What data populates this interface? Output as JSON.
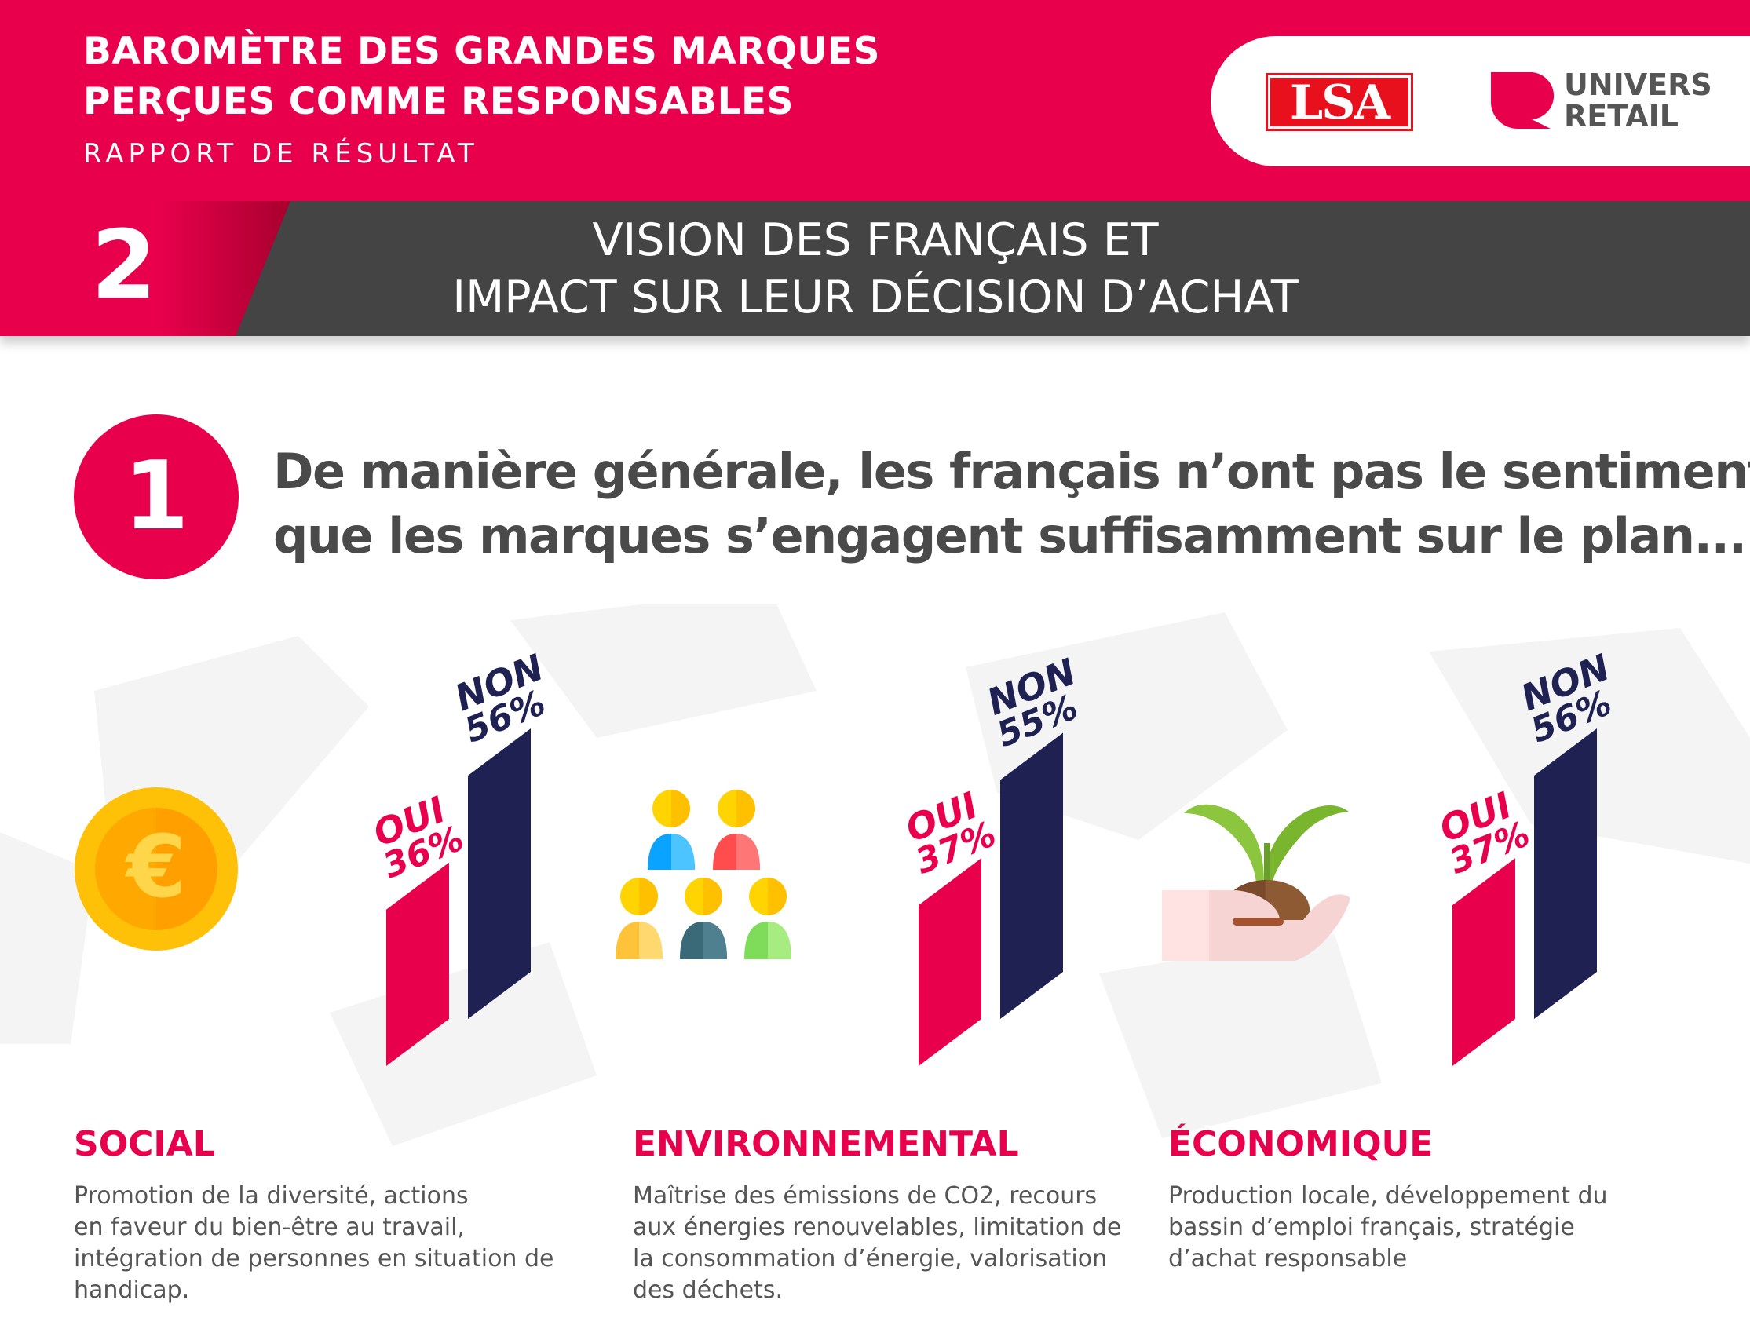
{
  "header": {
    "title_line1": "BAROMÈTRE DES GRANDES MARQUES",
    "title_line2": "PERÇUES COMME RESPONSABLES",
    "subtitle": "RAPPORT DE RÉSULTAT",
    "logo_lsa": "LSA",
    "logo_univers_line1": "UNIVERS",
    "logo_univers_line2": "RETAIL"
  },
  "section": {
    "number": "2",
    "title_line1": "VISION DES FRANÇAIS ET",
    "title_line2": "IMPACT SUR LEUR DÉCISION D’ACHAT"
  },
  "question": {
    "number": "1",
    "line1": "De manière générale, les français n’ont pas le sentiment",
    "line2": "que les marques s’engagent suffisamment sur le plan..."
  },
  "colors": {
    "oui": "#e8004c",
    "non": "#1e2152",
    "accent": "#e8004c"
  },
  "chart_data": {
    "type": "bar",
    "categories": [
      "SOCIAL",
      "ENVIRONNEMENTAL",
      "ÉCONOMIQUE"
    ],
    "series": [
      {
        "name": "OUI",
        "values": [
          36,
          37,
          37
        ],
        "labels": [
          "36%",
          "37%",
          "37%"
        ]
      },
      {
        "name": "NON",
        "values": [
          56,
          55,
          56
        ],
        "labels": [
          "56%",
          "55%",
          "56%"
        ]
      }
    ],
    "descriptions": [
      [
        "Promotion de la diversité, actions",
        "en faveur du bien-être au travail,",
        "intégration de personnes en situation de",
        "handicap."
      ],
      [
        "Maîtrise des émissions de CO2, recours",
        "aux énergies renouvelables, limitation de",
        "la consommation d’énergie, valorisation",
        "des déchets."
      ],
      [
        "Production locale, développement du",
        "bassin d’emploi français, stratégie",
        "d’achat responsable"
      ]
    ],
    "icons": [
      "euro-coin-icon",
      "people-group-icon",
      "hand-plant-icon"
    ]
  }
}
